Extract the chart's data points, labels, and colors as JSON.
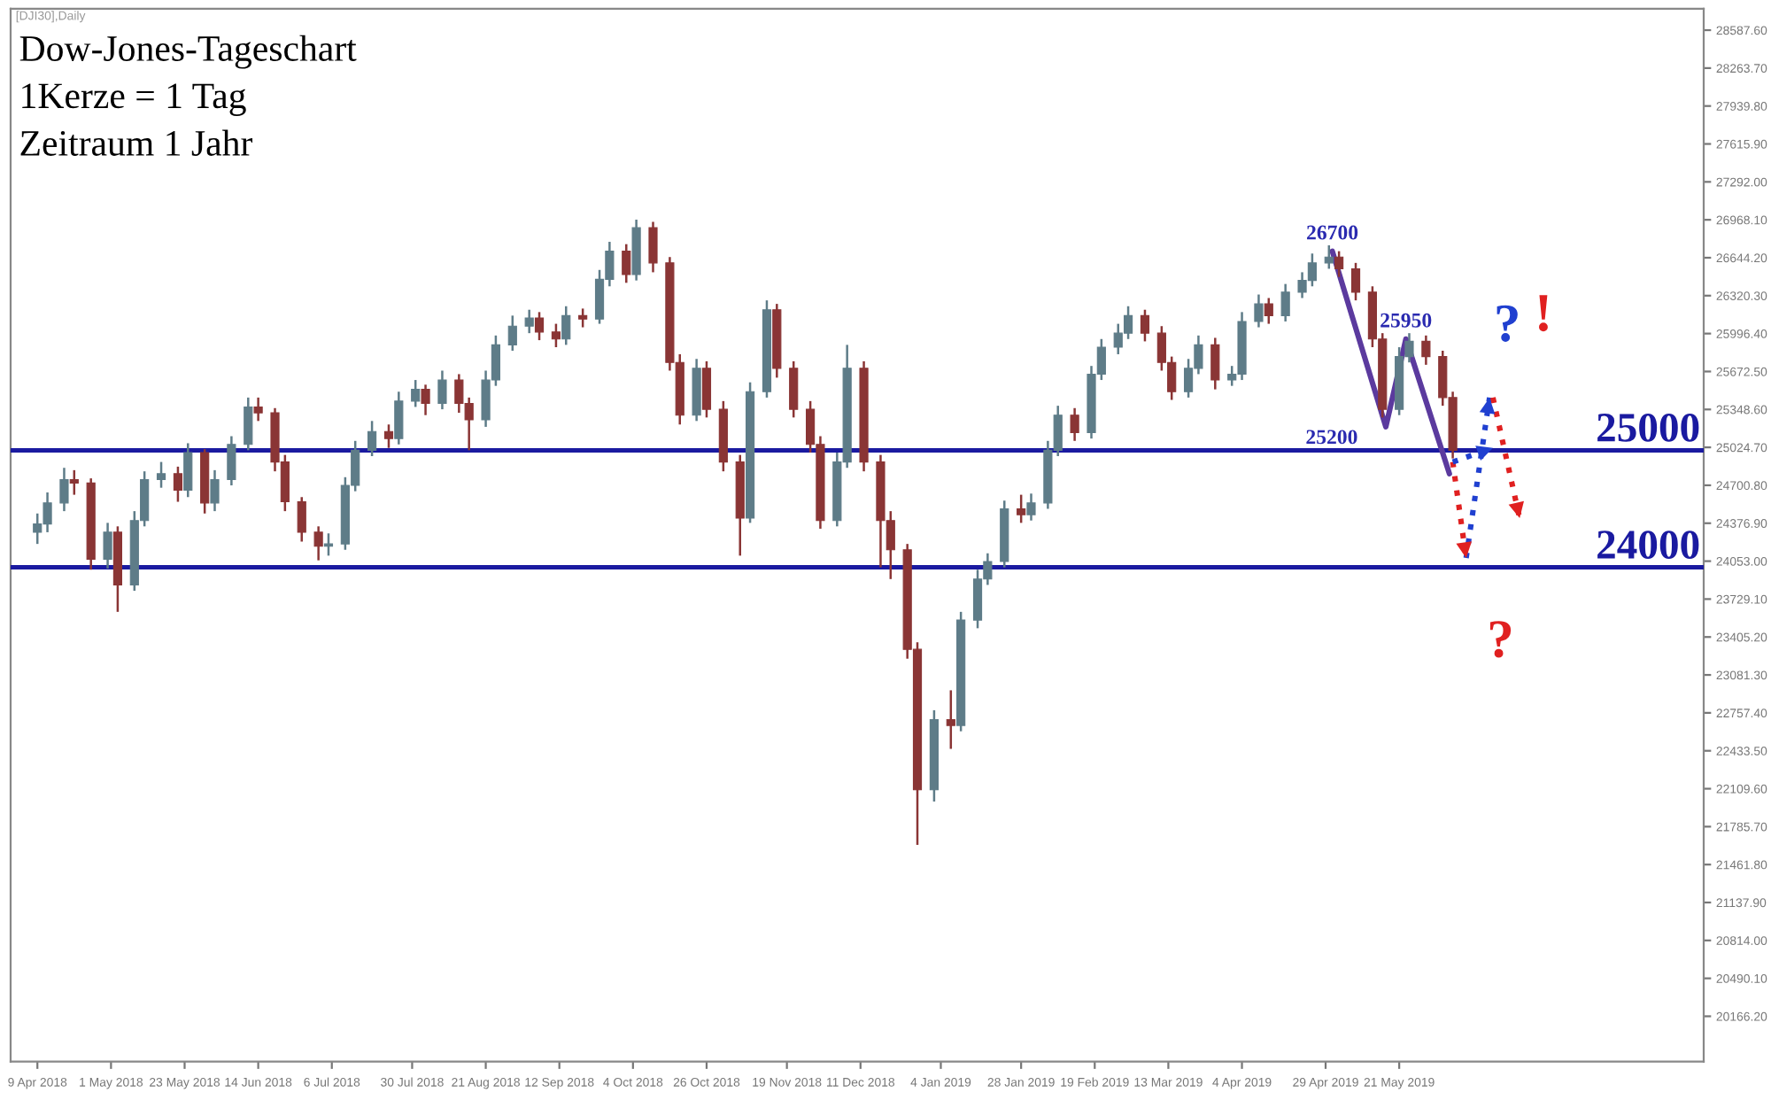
{
  "chart_data": {
    "type": "candlestick",
    "title": "Dow-Jones-Tageschart",
    "subtitle": "1Kerze = 1 Tag",
    "annotations": [
      "[DJI30],Daily",
      "Zeitraum 1 Jahr",
      "?",
      "!",
      "?",
      {
        "text": "26700",
        "x": "2019-05-01",
        "y": 26700
      },
      {
        "text": "25950",
        "x": "2019-05-23",
        "y": 25950
      },
      {
        "text": "25200",
        "x": "2019-05-17",
        "y": 25200
      }
    ],
    "x": [
      "2018-04-09",
      "2018-04-12",
      "2018-04-17",
      "2018-04-20",
      "2018-04-25",
      "2018-04-30",
      "2018-05-03",
      "2018-05-08",
      "2018-05-11",
      "2018-05-16",
      "2018-05-21",
      "2018-05-24",
      "2018-05-29",
      "2018-06-01",
      "2018-06-06",
      "2018-06-11",
      "2018-06-14",
      "2018-06-19",
      "2018-06-22",
      "2018-06-27",
      "2018-07-02",
      "2018-07-05",
      "2018-07-10",
      "2018-07-13",
      "2018-07-18",
      "2018-07-23",
      "2018-07-26",
      "2018-07-31",
      "2018-08-03",
      "2018-08-08",
      "2018-08-13",
      "2018-08-16",
      "2018-08-21",
      "2018-08-24",
      "2018-08-29",
      "2018-09-03",
      "2018-09-06",
      "2018-09-11",
      "2018-09-14",
      "2018-09-19",
      "2018-09-24",
      "2018-09-27",
      "2018-10-02",
      "2018-10-05",
      "2018-10-10",
      "2018-10-15",
      "2018-10-18",
      "2018-10-23",
      "2018-10-26",
      "2018-10-31",
      "2018-11-05",
      "2018-11-08",
      "2018-11-13",
      "2018-11-16",
      "2018-11-21",
      "2018-11-26",
      "2018-11-29",
      "2018-12-04",
      "2018-12-07",
      "2018-12-12",
      "2018-12-17",
      "2018-12-20",
      "2018-12-25",
      "2018-12-28",
      "2019-01-02",
      "2019-01-07",
      "2019-01-10",
      "2019-01-15",
      "2019-01-18",
      "2019-01-23",
      "2019-01-28",
      "2019-01-31",
      "2019-02-05",
      "2019-02-08",
      "2019-02-13",
      "2019-02-18",
      "2019-02-21",
      "2019-02-26",
      "2019-03-01",
      "2019-03-06",
      "2019-03-11",
      "2019-03-14",
      "2019-03-19",
      "2019-03-22",
      "2019-03-27",
      "2019-04-01",
      "2019-04-04",
      "2019-04-09",
      "2019-04-12",
      "2019-04-17",
      "2019-04-22",
      "2019-04-25",
      "2019-04-30",
      "2019-05-03",
      "2019-05-08",
      "2019-05-13",
      "2019-05-16",
      "2019-05-21",
      "2019-05-24",
      "2019-05-29",
      "2019-06-03",
      "2019-06-06"
    ],
    "ohlc": [
      [
        24300,
        24460,
        24200,
        24370
      ],
      [
        24370,
        24640,
        24300,
        24550
      ],
      [
        24550,
        24850,
        24480,
        24750
      ],
      [
        24750,
        24830,
        24620,
        24720
      ],
      [
        24720,
        24760,
        23980,
        24070
      ],
      [
        24070,
        24380,
        23990,
        24300
      ],
      [
        24300,
        24350,
        23620,
        23850
      ],
      [
        23850,
        24480,
        23800,
        24400
      ],
      [
        24400,
        24820,
        24350,
        24750
      ],
      [
        24750,
        24900,
        24680,
        24800
      ],
      [
        24800,
        24860,
        24560,
        24660
      ],
      [
        24660,
        25060,
        24600,
        24980
      ],
      [
        24980,
        25010,
        24460,
        24550
      ],
      [
        24550,
        24830,
        24480,
        24750
      ],
      [
        24750,
        25120,
        24700,
        25050
      ],
      [
        25050,
        25450,
        25000,
        25370
      ],
      [
        25370,
        25450,
        25250,
        25320
      ],
      [
        25320,
        25360,
        24820,
        24900
      ],
      [
        24900,
        24960,
        24480,
        24560
      ],
      [
        24560,
        24600,
        24220,
        24300
      ],
      [
        24300,
        24350,
        24060,
        24180
      ],
      [
        24180,
        24290,
        24100,
        24200
      ],
      [
        24200,
        24770,
        24150,
        24700
      ],
      [
        24700,
        25080,
        24650,
        25000
      ],
      [
        25000,
        25250,
        24950,
        25160
      ],
      [
        25160,
        25220,
        25020,
        25100
      ],
      [
        25100,
        25500,
        25050,
        25420
      ],
      [
        25420,
        25600,
        25370,
        25520
      ],
      [
        25520,
        25560,
        25300,
        25400
      ],
      [
        25400,
        25680,
        25350,
        25600
      ],
      [
        25600,
        25650,
        25320,
        25400
      ],
      [
        25400,
        25450,
        25000,
        25260
      ],
      [
        25260,
        25680,
        25200,
        25600
      ],
      [
        25600,
        25980,
        25550,
        25900
      ],
      [
        25900,
        26150,
        25850,
        26060
      ],
      [
        26060,
        26200,
        26000,
        26130
      ],
      [
        26130,
        26180,
        25940,
        26010
      ],
      [
        26010,
        26080,
        25880,
        25950
      ],
      [
        25950,
        26230,
        25900,
        26150
      ],
      [
        26150,
        26210,
        26050,
        26120
      ],
      [
        26120,
        26540,
        26080,
        26460
      ],
      [
        26460,
        26780,
        26400,
        26700
      ],
      [
        26700,
        26760,
        26430,
        26500
      ],
      [
        26500,
        26970,
        26450,
        26900
      ],
      [
        26900,
        26950,
        26520,
        26600
      ],
      [
        26600,
        26650,
        25680,
        25750
      ],
      [
        25750,
        25820,
        25220,
        25300
      ],
      [
        25300,
        25780,
        25250,
        25700
      ],
      [
        25700,
        25760,
        25280,
        25350
      ],
      [
        25350,
        25420,
        24820,
        24900
      ],
      [
        24900,
        24960,
        24100,
        24420
      ],
      [
        24420,
        25580,
        24380,
        25500
      ],
      [
        25500,
        26280,
        25450,
        26200
      ],
      [
        26200,
        26250,
        25620,
        25700
      ],
      [
        25700,
        25760,
        25280,
        25350
      ],
      [
        25350,
        25420,
        24980,
        25050
      ],
      [
        25050,
        25120,
        24330,
        24400
      ],
      [
        24400,
        24980,
        24350,
        24900
      ],
      [
        24900,
        25900,
        24850,
        25700
      ],
      [
        25700,
        25760,
        24820,
        24900
      ],
      [
        24900,
        24960,
        24000,
        24400
      ],
      [
        24400,
        24480,
        23900,
        24150
      ],
      [
        24150,
        24200,
        23220,
        23300
      ],
      [
        23300,
        23360,
        21630,
        22100
      ],
      [
        22100,
        22780,
        22000,
        22700
      ],
      [
        22700,
        22950,
        22450,
        22650
      ],
      [
        22650,
        23620,
        22600,
        23550
      ],
      [
        23550,
        23980,
        23480,
        23900
      ],
      [
        23900,
        24120,
        23850,
        24050
      ],
      [
        24050,
        24570,
        24000,
        24500
      ],
      [
        24500,
        24620,
        24380,
        24450
      ],
      [
        24450,
        24630,
        24400,
        24550
      ],
      [
        24550,
        25080,
        24500,
        25000
      ],
      [
        25000,
        25380,
        24950,
        25300
      ],
      [
        25300,
        25360,
        25080,
        25150
      ],
      [
        25150,
        25720,
        25100,
        25650
      ],
      [
        25650,
        25950,
        25600,
        25880
      ],
      [
        25880,
        26080,
        25820,
        26000
      ],
      [
        26000,
        26230,
        25950,
        26150
      ],
      [
        26150,
        26200,
        25930,
        26000
      ],
      [
        26000,
        26060,
        25680,
        25750
      ],
      [
        25750,
        25800,
        25430,
        25500
      ],
      [
        25500,
        25780,
        25450,
        25700
      ],
      [
        25700,
        25980,
        25650,
        25900
      ],
      [
        25900,
        25960,
        25520,
        25600
      ],
      [
        25600,
        25720,
        25550,
        25650
      ],
      [
        25650,
        26180,
        25600,
        26100
      ],
      [
        26100,
        26330,
        26050,
        26250
      ],
      [
        26250,
        26300,
        26080,
        26150
      ],
      [
        26150,
        26420,
        26100,
        26350
      ],
      [
        26350,
        26520,
        26300,
        26450
      ],
      [
        26450,
        26680,
        26400,
        26600
      ],
      [
        26600,
        26750,
        26550,
        26650
      ],
      [
        26650,
        26700,
        26480,
        26550
      ],
      [
        26550,
        26600,
        26280,
        26350
      ],
      [
        26350,
        26400,
        25880,
        25950
      ],
      [
        25950,
        26000,
        25280,
        25350
      ],
      [
        25350,
        25880,
        25300,
        25800
      ],
      [
        25800,
        26000,
        25750,
        25930
      ],
      [
        25930,
        25980,
        25730,
        25800
      ],
      [
        25800,
        25850,
        25380,
        25450
      ],
      [
        25450,
        25500,
        24930,
        25000
      ]
    ],
    "series": [
      {
        "type": "line",
        "color": "#5b3a9e",
        "line_style": "solid",
        "x": [
          "2019-05-01",
          "2019-05-17",
          "2019-05-23",
          "2019-06-05"
        ],
        "values": [
          26700,
          25200,
          25950,
          24800
        ]
      },
      {
        "type": "line",
        "color": "#e02020",
        "line_style": "dotted",
        "x": [
          "2019-06-06",
          "2019-06-10"
        ],
        "values": [
          24900,
          24080
        ]
      },
      {
        "type": "line",
        "color": "#2040d0",
        "line_style": "dotted",
        "x": [
          "2019-06-10",
          "2019-06-17"
        ],
        "values": [
          24080,
          25450
        ]
      },
      {
        "type": "line",
        "color": "#e02020",
        "line_style": "dotted",
        "x": [
          "2019-06-18",
          "2019-06-26"
        ],
        "values": [
          25450,
          24420
        ]
      },
      {
        "type": "line",
        "color": "#2040d0",
        "line_style": "dotted",
        "x": [
          "2019-06-06",
          "2019-06-18"
        ],
        "values": [
          24900,
          25020
        ]
      }
    ],
    "ref_lines": [
      {
        "axis": "y",
        "value": 25000,
        "label": "25000",
        "color": "#1a1aa0",
        "line_style": "solid"
      },
      {
        "axis": "y",
        "value": 24000,
        "label": "24000",
        "color": "#1a1aa0",
        "line_style": "solid"
      }
    ],
    "xlim": [
      "2018-04-01",
      "2019-08-20"
    ],
    "xticks": [
      {
        "value": "2018-04-09",
        "label": "9 Apr 2018"
      },
      {
        "value": "2018-05-01",
        "label": "1 May 2018"
      },
      {
        "value": "2018-05-23",
        "label": "23 May 2018"
      },
      {
        "value": "2018-06-14",
        "label": "14 Jun 2018"
      },
      {
        "value": "2018-07-06",
        "label": "6 Jul 2018"
      },
      {
        "value": "2018-07-30",
        "label": "30 Jul 2018"
      },
      {
        "value": "2018-08-21",
        "label": "21 Aug 2018"
      },
      {
        "value": "2018-09-12",
        "label": "12 Sep 2018"
      },
      {
        "value": "2018-10-04",
        "label": "4 Oct 2018"
      },
      {
        "value": "2018-10-26",
        "label": "26 Oct 2018"
      },
      {
        "value": "2018-11-19",
        "label": "19 Nov 2018"
      },
      {
        "value": "2018-12-11",
        "label": "11 Dec 2018"
      },
      {
        "value": "2019-01-04",
        "label": "4 Jan 2019"
      },
      {
        "value": "2019-01-28",
        "label": "28 Jan 2019"
      },
      {
        "value": "2019-02-19",
        "label": "19 Feb 2019"
      },
      {
        "value": "2019-03-13",
        "label": "13 Mar 2019"
      },
      {
        "value": "2019-04-04",
        "label": "4 Apr 2019"
      },
      {
        "value": "2019-04-29",
        "label": "29 Apr 2019"
      },
      {
        "value": "2019-05-21",
        "label": "21 May 2019"
      }
    ],
    "ylim": [
      19780,
      28770
    ],
    "yticks": [
      {
        "value": 20166.2,
        "label": "20166.20"
      },
      {
        "value": 20490.1,
        "label": "20490.10"
      },
      {
        "value": 20814.0,
        "label": "20814.00"
      },
      {
        "value": 21137.9,
        "label": "21137.90"
      },
      {
        "value": 21461.8,
        "label": "21461.80"
      },
      {
        "value": 21785.7,
        "label": "21785.70"
      },
      {
        "value": 22109.6,
        "label": "22109.60"
      },
      {
        "value": 22433.5,
        "label": "22433.50"
      },
      {
        "value": 22757.4,
        "label": "22757.40"
      },
      {
        "value": 23081.3,
        "label": "23081.30"
      },
      {
        "value": 23405.2,
        "label": "23405.20"
      },
      {
        "value": 23729.1,
        "label": "23729.10"
      },
      {
        "value": 24053.0,
        "label": "24053.00"
      },
      {
        "value": 24376.9,
        "label": "24376.90"
      },
      {
        "value": 24700.8,
        "label": "24700.80"
      },
      {
        "value": 25024.7,
        "label": "25024.70"
      },
      {
        "value": 25348.6,
        "label": "25348.60"
      },
      {
        "value": 25672.5,
        "label": "25672.50"
      },
      {
        "value": 25996.4,
        "label": "25996.40"
      },
      {
        "value": 26320.3,
        "label": "26320.30"
      },
      {
        "value": 26644.2,
        "label": "26644.20"
      },
      {
        "value": 26968.1,
        "label": "26968.10"
      },
      {
        "value": 27292.0,
        "label": "27292.00"
      },
      {
        "value": 27615.9,
        "label": "27615.90"
      },
      {
        "value": 27939.8,
        "label": "27939.80"
      },
      {
        "value": 28263.7,
        "label": "28263.70"
      },
      {
        "value": 28587.6,
        "label": "28587.60"
      }
    ],
    "grid": false,
    "legend": false,
    "marker": "none"
  }
}
